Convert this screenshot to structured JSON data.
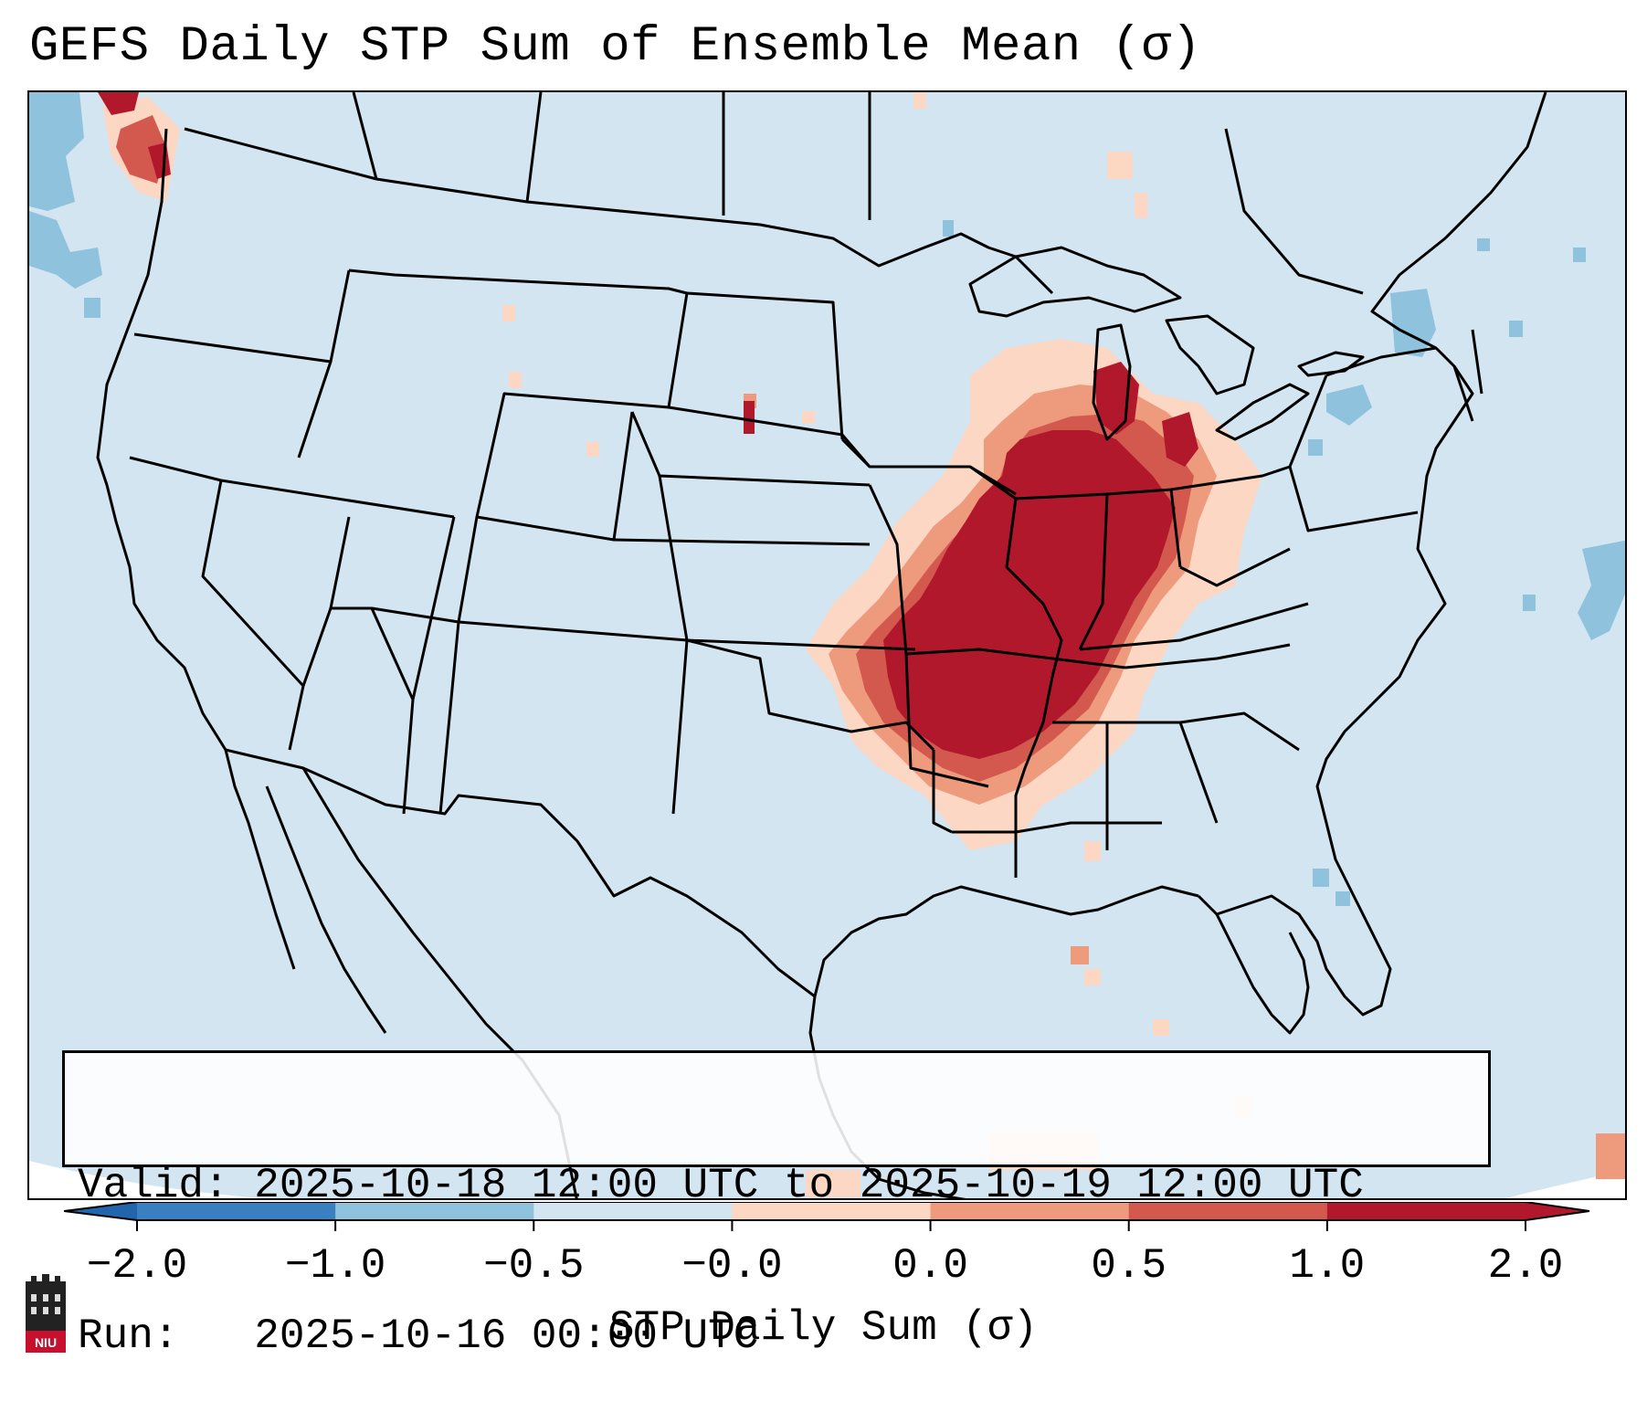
{
  "title": "GEFS Daily STP Sum of Ensemble Mean (σ)",
  "info": {
    "valid_label": "Valid:",
    "valid_value": "2025-10-18 12:00 UTC to 2025-10-19 12:00 UTC",
    "run_label": "Run:",
    "run_value": "2025-10-16 00:00 UTC"
  },
  "colorbar": {
    "label": "STP Daily Sum (σ)",
    "ticks": [
      "−2.0",
      "−1.0",
      "−0.5",
      "−0.0",
      "0.0",
      "0.5",
      "1.0",
      "2.0"
    ],
    "colors": [
      "#3a7fbf",
      "#8ec2dd",
      "#d3e5f0",
      "#f9f9f9",
      "#fbd7c4",
      "#ee9a7c",
      "#d3594f",
      "#b2182b"
    ],
    "extend_low_color": "#2166ac",
    "extend_high_color": "#b2182b"
  },
  "logo": {
    "text": "NIU",
    "icon": "niu-logo-icon"
  },
  "map_colors": {
    "background": "#d3e5f0",
    "strong": "#b2182b",
    "moderate": "#d3594f",
    "weak": "#ee9a7c",
    "slight": "#fbd7c4",
    "negative": "#8ec2dd",
    "borders": "#000000"
  }
}
